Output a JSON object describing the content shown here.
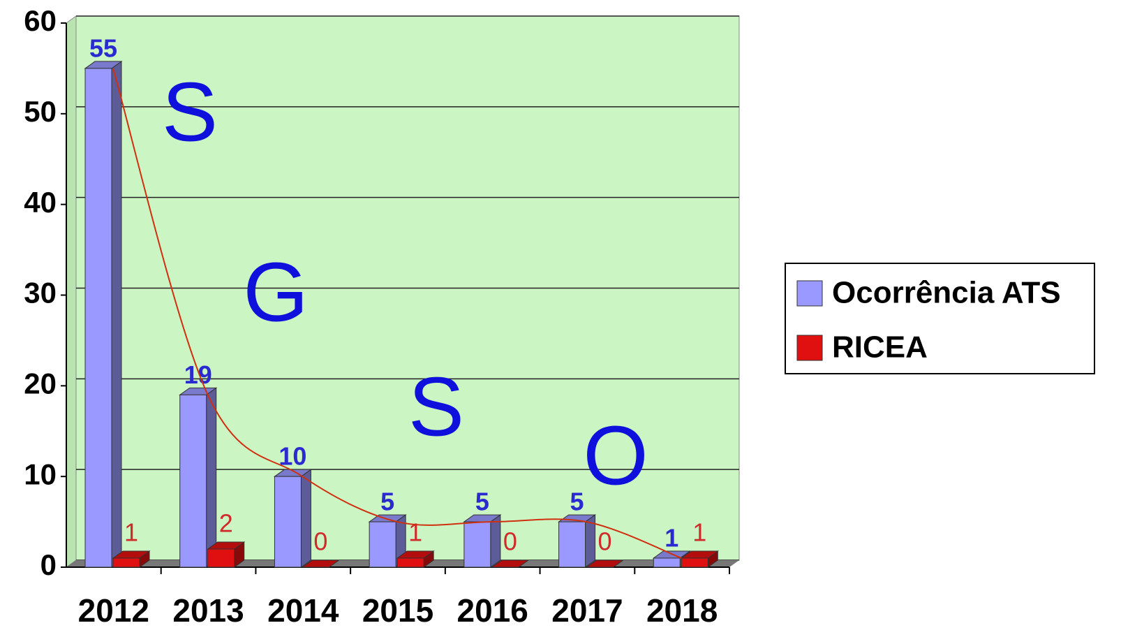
{
  "chart_data": {
    "type": "bar3d",
    "categories": [
      "2012",
      "2013",
      "2014",
      "2015",
      "2016",
      "2017",
      "2018"
    ],
    "series": [
      {
        "name": "Ocorrência ATS",
        "color": "#9999ff",
        "values": [
          55,
          19,
          10,
          5,
          5,
          5,
          1
        ]
      },
      {
        "name": "RICEA",
        "color": "#e01010",
        "values": [
          1,
          2,
          0,
          1,
          0,
          0,
          1
        ]
      }
    ],
    "ylim": [
      0,
      60
    ],
    "yticks": [
      0,
      10,
      20,
      30,
      40,
      50,
      60
    ],
    "grid": true,
    "legend": "right",
    "annotations": [
      "S",
      "G",
      "S",
      "O"
    ]
  }
}
